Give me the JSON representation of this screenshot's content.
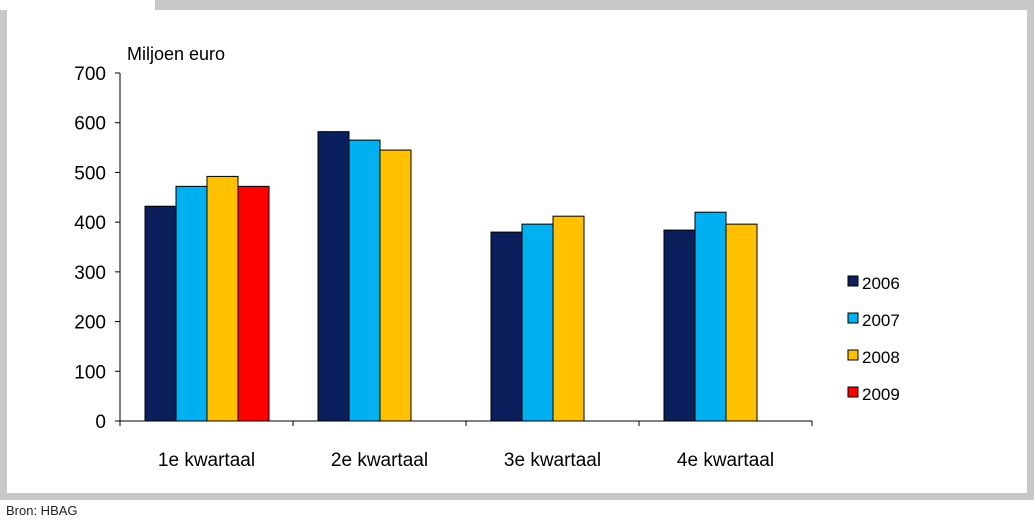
{
  "chart_data": {
    "type": "bar",
    "title": "",
    "ylabel": "Miljoen euro",
    "xlabel": "",
    "ylim": [
      0,
      700
    ],
    "yticks": [
      0,
      100,
      200,
      300,
      400,
      500,
      600,
      700
    ],
    "categories": [
      "1e kwartaal",
      "2e kwartaal",
      "3e kwartaal",
      "4e kwartaal"
    ],
    "series": [
      {
        "name": "2006",
        "color": "#0a1f5c",
        "values": [
          432,
          582,
          380,
          384
        ]
      },
      {
        "name": "2007",
        "color": "#00b0f0",
        "values": [
          472,
          565,
          396,
          420
        ]
      },
      {
        "name": "2008",
        "color": "#ffc000",
        "values": [
          492,
          545,
          412,
          396
        ]
      },
      {
        "name": "2009",
        "color": "#ff0000",
        "values": [
          472,
          null,
          null,
          null
        ]
      }
    ],
    "legend_position": "right",
    "grid": false
  },
  "footer": {
    "source": "Bron: HBAG"
  }
}
